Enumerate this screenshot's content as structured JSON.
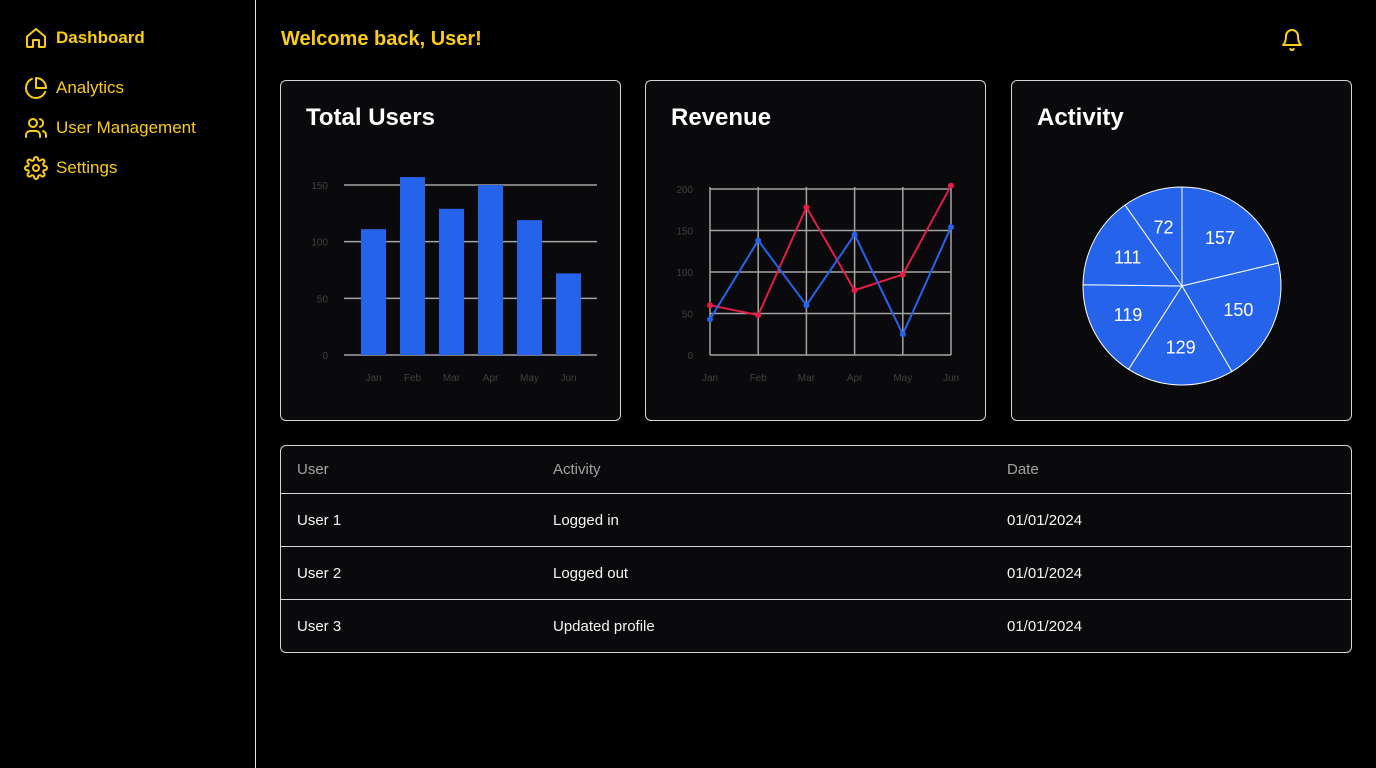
{
  "sidebar": {
    "items": [
      {
        "label": "Dashboard",
        "icon": "home-icon",
        "active": true
      },
      {
        "label": "Analytics",
        "icon": "pie-chart-icon"
      },
      {
        "label": "User Management",
        "icon": "users-icon"
      },
      {
        "label": "Settings",
        "icon": "gear-icon"
      }
    ]
  },
  "header": {
    "title": "Welcome back, User!",
    "notification_icon": "bell-icon"
  },
  "colors": {
    "accent": "#facc15",
    "series_blue": "#2563eb",
    "series_red": "#e11d48",
    "background": "#000000",
    "card": "#0a0a0c"
  },
  "cards": {
    "users_title": "Total Users",
    "revenue_title": "Revenue",
    "activity_title": "Activity"
  },
  "chart_data": [
    {
      "type": "bar",
      "title": "Total Users",
      "categories": [
        "Jan",
        "Feb",
        "Mar",
        "Apr",
        "May",
        "Jun"
      ],
      "values": [
        111,
        157,
        129,
        150,
        119,
        72
      ],
      "yticks": [
        0,
        50,
        100,
        150
      ],
      "ylim": [
        0,
        160
      ],
      "grid": true
    },
    {
      "type": "line",
      "title": "Revenue",
      "categories": [
        "Jan",
        "Feb",
        "Mar",
        "Apr",
        "May",
        "Jun"
      ],
      "series": [
        {
          "values": [
            60,
            48,
            178,
            78,
            97,
            204
          ],
          "color": "#e11d48"
        },
        {
          "values": [
            43,
            138,
            60,
            145,
            25,
            154
          ],
          "color": "#2563eb"
        }
      ],
      "yticks": [
        0,
        50,
        100,
        150,
        200
      ],
      "ylim": [
        0,
        200
      ],
      "grid": true
    },
    {
      "type": "pie",
      "title": "Activity",
      "values": [
        157,
        150,
        129,
        119,
        111,
        72
      ],
      "color": "#2563eb"
    }
  ],
  "table": {
    "headers": [
      "User",
      "Activity",
      "Date"
    ],
    "rows": [
      [
        "User 1",
        "Logged in",
        "01/01/2024"
      ],
      [
        "User 2",
        "Logged out",
        "01/01/2024"
      ],
      [
        "User 3",
        "Updated profile",
        "01/01/2024"
      ]
    ]
  }
}
